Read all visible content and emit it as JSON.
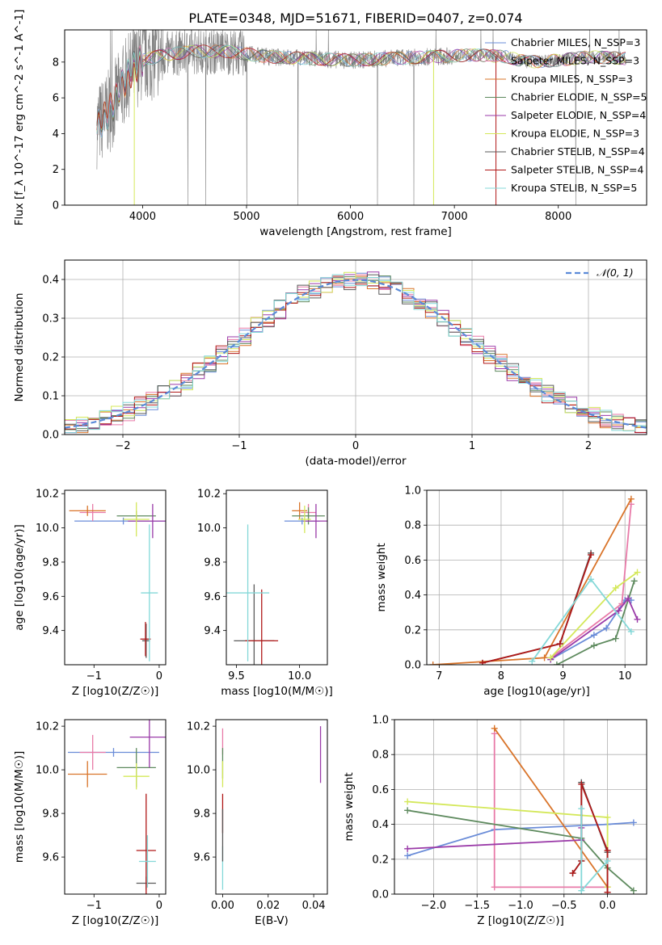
{
  "figure_title": "PLATE=0348, MJD=51671, FIBERID=0407, z=0.074",
  "colors": {
    "chabrier_miles": "#6a8cd8",
    "salpeter_miles": "#e87aa8",
    "kroupa_miles": "#d9742a",
    "chabrier_elodie": "#5e8a5e",
    "salpeter_elodie": "#9a3aa8",
    "kroupa_elodie": "#d4e85a",
    "chabrier_stelib": "#5a5a5a",
    "salpeter_stelib": "#b01818",
    "kroupa_stelib": "#84d8d8",
    "data": "#808080",
    "normal": "#5b8ad8"
  },
  "chart_data": [
    {
      "id": "spectrum",
      "type": "line",
      "xlabel": "wavelength [Angstrom, rest frame]",
      "ylabel": "Flux [f_λ 10^-17 erg cm^-2 s^-1 A^-1]",
      "xlim": [
        3250,
        8850
      ],
      "ylim": [
        0,
        9.8
      ],
      "xticks": [
        4000,
        5000,
        6000,
        7000,
        8000
      ],
      "yticks": [
        0,
        2,
        4,
        6,
        8
      ],
      "grid": false,
      "legend": "right",
      "series": [
        {
          "name": "Chabrier MILES, N_SSP=3",
          "key": "chabrier_miles"
        },
        {
          "name": "Salpeter MILES, N_SSP=3",
          "key": "salpeter_miles"
        },
        {
          "name": "Kroupa MILES, N_SSP=3",
          "key": "kroupa_miles"
        },
        {
          "name": "Chabrier ELODIE, N_SSP=5",
          "key": "chabrier_elodie"
        },
        {
          "name": "Salpeter ELODIE, N_SSP=4",
          "key": "salpeter_elodie"
        },
        {
          "name": "Kroupa ELODIE, N_SSP=3",
          "key": "kroupa_elodie"
        },
        {
          "name": "Chabrier STELIB, N_SSP=4",
          "key": "chabrier_stelib"
        },
        {
          "name": "Salpeter STELIB, N_SSP=4",
          "key": "salpeter_stelib"
        },
        {
          "name": "Kroupa STELIB, N_SSP=5",
          "key": "kroupa_stelib"
        }
      ],
      "continuum": [
        [
          3560,
          4.4
        ],
        [
          3700,
          5.4
        ],
        [
          3800,
          6.6
        ],
        [
          3900,
          7.6
        ],
        [
          4000,
          8.1
        ],
        [
          4200,
          8.4
        ],
        [
          4500,
          8.6
        ],
        [
          4800,
          8.6
        ],
        [
          5200,
          8.3
        ],
        [
          5600,
          8.2
        ],
        [
          6000,
          8.1
        ],
        [
          6400,
          8.2
        ],
        [
          6800,
          8.3
        ],
        [
          7200,
          8.4
        ],
        [
          7500,
          8.3
        ],
        [
          7700,
          8.0
        ],
        [
          8000,
          8.1
        ],
        [
          8300,
          8.3
        ],
        [
          8650,
          8.2
        ]
      ]
    },
    {
      "id": "residuals",
      "type": "line",
      "xlabel": "(data-model)/error",
      "ylabel": "Normed distribution",
      "xlim": [
        -2.5,
        2.5
      ],
      "ylim": [
        0,
        0.45
      ],
      "xticks": [
        -2,
        -1,
        0,
        1,
        2
      ],
      "yticks": [
        0.0,
        0.1,
        0.2,
        0.3,
        0.4
      ],
      "grid": true,
      "legend": "top-right",
      "legend_label": "𝒩(0, 1)"
    },
    {
      "id": "age_vs_Z",
      "type": "scatter",
      "xlabel": "Z [log10(Z/Z☉)]",
      "ylabel": "age  [log10(age/yr)]",
      "xlim": [
        -1.45,
        0.1
      ],
      "ylim": [
        9.2,
        10.22
      ],
      "xticks": [
        -1,
        0
      ],
      "yticks": [
        9.4,
        9.6,
        9.8,
        10.0,
        10.2
      ],
      "points": [
        {
          "key": "chabrier_miles",
          "x": -0.55,
          "y": 10.04,
          "xerr": 0.75,
          "yerr": 0.02
        },
        {
          "key": "salpeter_miles",
          "x": -1.02,
          "y": 10.09,
          "xerr": 0.2,
          "yerr": 0.05
        },
        {
          "key": "kroupa_miles",
          "x": -1.1,
          "y": 10.1,
          "xerr": 0.28,
          "yerr": 0.03
        },
        {
          "key": "chabrier_elodie",
          "x": -0.35,
          "y": 10.07,
          "xerr": 0.3,
          "yerr": 0.03
        },
        {
          "key": "salpeter_elodie",
          "x": -0.1,
          "y": 10.04,
          "xerr": 0.38,
          "yerr": 0.1
        },
        {
          "key": "kroupa_elodie",
          "x": -0.35,
          "y": 10.05,
          "xerr": 0.2,
          "yerr": 0.1
        },
        {
          "key": "chabrier_stelib",
          "x": -0.2,
          "y": 9.34,
          "xerr": 0.06,
          "yerr": 0.1
        },
        {
          "key": "salpeter_stelib",
          "x": -0.21,
          "y": 9.35,
          "xerr": 0.08,
          "yerr": 0.1
        },
        {
          "key": "kroupa_stelib",
          "x": -0.15,
          "y": 9.62,
          "xerr": 0.13,
          "yerr": 0.4
        }
      ]
    },
    {
      "id": "age_vs_mass",
      "type": "scatter",
      "xlabel": "mass [log10(M/M☉)]",
      "ylabel": "",
      "xlim": [
        9.42,
        10.22
      ],
      "ylim": [
        9.2,
        10.22
      ],
      "xticks": [
        9.5,
        10.0
      ],
      "yticks": [
        9.4,
        9.6,
        9.8,
        10.0,
        10.2
      ],
      "points": [
        {
          "key": "chabrier_miles",
          "x": 10.02,
          "y": 10.04,
          "xerr": 0.14,
          "yerr": 0.02
        },
        {
          "key": "salpeter_miles",
          "x": 10.07,
          "y": 10.09,
          "xerr": 0.06,
          "yerr": 0.05
        },
        {
          "key": "kroupa_miles",
          "x": 10.0,
          "y": 10.1,
          "xerr": 0.06,
          "yerr": 0.05
        },
        {
          "key": "chabrier_elodie",
          "x": 10.07,
          "y": 10.07,
          "xerr": 0.13,
          "yerr": 0.05
        },
        {
          "key": "salpeter_elodie",
          "x": 10.13,
          "y": 10.04,
          "xerr": 0.1,
          "yerr": 0.1
        },
        {
          "key": "kroupa_elodie",
          "x": 10.04,
          "y": 10.05,
          "xerr": 0.05,
          "yerr": 0.08
        },
        {
          "key": "chabrier_stelib",
          "x": 9.64,
          "y": 9.34,
          "xerr": 0.16,
          "yerr": 0.33
        },
        {
          "key": "salpeter_stelib",
          "x": 9.7,
          "y": 9.34,
          "xerr": 0.13,
          "yerr": 0.3
        },
        {
          "key": "kroupa_stelib",
          "x": 9.59,
          "y": 9.62,
          "xerr": 0.17,
          "yerr": 0.4
        }
      ]
    },
    {
      "id": "weight_vs_age",
      "type": "line",
      "xlabel": "age  [log10(age/yr)]",
      "ylabel": "mass weight",
      "xlim": [
        6.8,
        10.35
      ],
      "ylim": [
        0,
        1.0
      ],
      "xticks": [
        7,
        8,
        9,
        10
      ],
      "yticks": [
        0.0,
        0.2,
        0.4,
        0.6,
        0.8,
        1.0
      ],
      "grid": true,
      "series": [
        {
          "key": "chabrier_miles",
          "x": [
            8.8,
            9.5,
            9.7,
            10.0,
            10.1
          ],
          "y": [
            0.03,
            0.17,
            0.21,
            0.37,
            0.37
          ]
        },
        {
          "key": "salpeter_miles",
          "x": [
            8.8,
            9.95,
            10.1
          ],
          "y": [
            0.04,
            0.35,
            0.92
          ]
        },
        {
          "key": "kroupa_miles",
          "x": [
            6.9,
            8.7,
            10.1
          ],
          "y": [
            0.0,
            0.04,
            0.95
          ]
        },
        {
          "key": "chabrier_elodie",
          "x": [
            8.9,
            9.5,
            9.85,
            10.15
          ],
          "y": [
            0.0,
            0.11,
            0.15,
            0.48
          ]
        },
        {
          "key": "salpeter_elodie",
          "x": [
            8.8,
            9.9,
            10.05,
            10.2
          ],
          "y": [
            0.03,
            0.31,
            0.38,
            0.26
          ]
        },
        {
          "key": "kroupa_elodie",
          "x": [
            8.8,
            9.85,
            10.2
          ],
          "y": [
            0.04,
            0.44,
            0.53
          ]
        },
        {
          "key": "chabrier_stelib",
          "x": [
            7.7,
            8.95,
            9.45
          ],
          "y": [
            0.01,
            0.12,
            0.64
          ]
        },
        {
          "key": "salpeter_stelib",
          "x": [
            7.7,
            8.95,
            9.45
          ],
          "y": [
            0.01,
            0.12,
            0.63
          ]
        },
        {
          "key": "kroupa_stelib",
          "x": [
            8.5,
            9.45,
            10.1
          ],
          "y": [
            0.02,
            0.49,
            0.19
          ]
        }
      ]
    },
    {
      "id": "mass_vs_Z",
      "type": "scatter",
      "xlabel": "Z [log10(Z/Z☉)]",
      "ylabel": "mass [log10(M/M☉)]",
      "xlim": [
        -1.45,
        0.1
      ],
      "ylim": [
        9.43,
        10.23
      ],
      "xticks": [
        -1,
        0
      ],
      "yticks": [
        9.6,
        9.8,
        10.0,
        10.2
      ],
      "points": [
        {
          "key": "chabrier_miles",
          "x": -0.7,
          "y": 10.08,
          "xerr": 0.7,
          "yerr": 0.02
        },
        {
          "key": "salpeter_miles",
          "x": -1.02,
          "y": 10.08,
          "xerr": 0.2,
          "yerr": 0.08
        },
        {
          "key": "kroupa_miles",
          "x": -1.1,
          "y": 9.98,
          "xerr": 0.3,
          "yerr": 0.06
        },
        {
          "key": "chabrier_elodie",
          "x": -0.35,
          "y": 10.01,
          "xerr": 0.3,
          "yerr": 0.09
        },
        {
          "key": "salpeter_elodie",
          "x": -0.15,
          "y": 10.15,
          "xerr": 0.3,
          "yerr": 0.14
        },
        {
          "key": "kroupa_elodie",
          "x": -0.35,
          "y": 9.97,
          "xerr": 0.2,
          "yerr": 0.06
        },
        {
          "key": "chabrier_stelib",
          "x": -0.2,
          "y": 9.48,
          "xerr": 0.15,
          "yerr": 0.03
        },
        {
          "key": "salpeter_stelib",
          "x": -0.2,
          "y": 9.63,
          "xerr": 0.15,
          "yerr": 0.26
        },
        {
          "key": "kroupa_stelib",
          "x": -0.18,
          "y": 9.58,
          "xerr": 0.13,
          "yerr": 0.12
        }
      ]
    },
    {
      "id": "mass_vs_ebv",
      "type": "scatter",
      "xlabel": "E(B-V)",
      "ylabel": "",
      "xlim": [
        -0.003,
        0.046
      ],
      "ylim": [
        9.43,
        10.23
      ],
      "xticks": [
        0.0,
        0.02,
        0.04
      ],
      "yticks": [
        9.6,
        9.8,
        10.0,
        10.2
      ],
      "points": [
        {
          "key": "salpeter_elodie",
          "x": 0.043,
          "y": 10.07,
          "xerr": 0,
          "yerr": 0.13
        },
        {
          "key": "salpeter_miles",
          "x": 0.0,
          "y": 10.13,
          "xerr": 0,
          "yerr": 0.06
        },
        {
          "key": "chabrier_elodie",
          "x": 0.0,
          "y": 10.03,
          "xerr": 0,
          "yerr": 0.07
        },
        {
          "key": "kroupa_elodie",
          "x": 0.0,
          "y": 9.98,
          "xerr": 0,
          "yerr": 0.06
        },
        {
          "key": "salpeter_stelib",
          "x": 0.0,
          "y": 9.8,
          "xerr": 0,
          "yerr": 0.09
        },
        {
          "key": "kroupa_stelib",
          "x": 0.0,
          "y": 9.55,
          "xerr": 0,
          "yerr": 0.1
        },
        {
          "key": "chabrier_stelib",
          "x": 0.0,
          "y": 9.7,
          "xerr": 0,
          "yerr": 0.12
        }
      ]
    },
    {
      "id": "weight_vs_Z",
      "type": "line",
      "xlabel": "Z [log10(Z/Z☉)]",
      "ylabel": "mass weight",
      "xlim": [
        -2.45,
        0.45
      ],
      "ylim": [
        0,
        1.0
      ],
      "xticks": [
        -2.0,
        -1.5,
        -1.0,
        -0.5,
        0.0
      ],
      "yticks": [
        0.0,
        0.2,
        0.4,
        0.6,
        0.8,
        1.0
      ],
      "grid": true,
      "series": [
        {
          "key": "chabrier_miles",
          "x": [
            -2.3,
            -1.3,
            0.0,
            0.3
          ],
          "y": [
            0.22,
            0.37,
            0.4,
            0.41
          ]
        },
        {
          "key": "salpeter_miles",
          "x": [
            -1.3,
            -1.3,
            0.0
          ],
          "y": [
            0.92,
            0.04,
            0.04
          ]
        },
        {
          "key": "kroupa_miles",
          "x": [
            -1.3,
            0.0
          ],
          "y": [
            0.95,
            0.04
          ]
        },
        {
          "key": "chabrier_elodie",
          "x": [
            -2.3,
            -0.3,
            0.0,
            0.3
          ],
          "y": [
            0.48,
            0.32,
            0.15,
            0.02
          ]
        },
        {
          "key": "salpeter_elodie",
          "x": [
            -2.3,
            -0.3,
            -0.3
          ],
          "y": [
            0.26,
            0.31,
            0.38
          ]
        },
        {
          "key": "kroupa_elodie",
          "x": [
            -2.3,
            0.0,
            0.0
          ],
          "y": [
            0.53,
            0.44,
            0.04
          ]
        },
        {
          "key": "chabrier_stelib",
          "x": [
            -0.4,
            -0.3,
            -0.3,
            0.0,
            0.0
          ],
          "y": [
            0.12,
            0.19,
            0.64,
            0.24,
            0.01
          ]
        },
        {
          "key": "salpeter_stelib",
          "x": [
            -0.4,
            -0.3,
            -0.3,
            0.0,
            0.0
          ],
          "y": [
            0.12,
            0.19,
            0.63,
            0.25,
            0.01
          ]
        },
        {
          "key": "kroupa_stelib",
          "x": [
            -0.3,
            -0.3,
            0.0
          ],
          "y": [
            0.49,
            0.02,
            0.19
          ]
        }
      ]
    }
  ]
}
